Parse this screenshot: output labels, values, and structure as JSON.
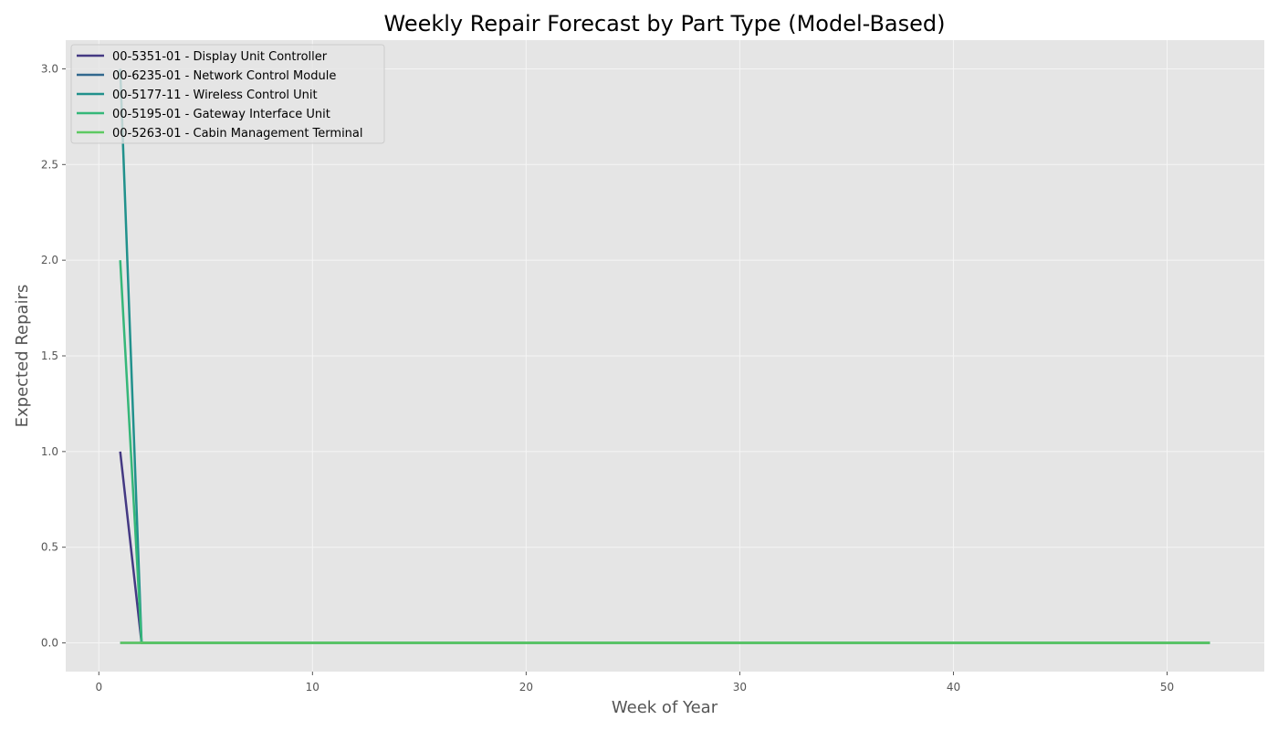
{
  "chart_data": {
    "type": "line",
    "title": "Weekly Repair Forecast by Part Type (Model-Based)",
    "xlabel": "Week of Year",
    "ylabel": "Expected Repairs",
    "xlim": [
      -1.55,
      54.55
    ],
    "ylim": [
      -0.15,
      3.15
    ],
    "x_ticks": [
      0,
      10,
      20,
      30,
      40,
      50
    ],
    "y_ticks": [
      0.0,
      0.5,
      1.0,
      1.5,
      2.0,
      2.5,
      3.0
    ],
    "x_tick_labels": [
      "0",
      "10",
      "20",
      "30",
      "40",
      "50"
    ],
    "y_tick_labels": [
      "0.0",
      "0.5",
      "1.0",
      "1.5",
      "2.0",
      "2.5",
      "3.0"
    ],
    "grid": true,
    "legend_position": "top-left",
    "series": [
      {
        "name": "00-5351-01 - Display Unit Controller",
        "color": "#443983",
        "points": [
          [
            1,
            1.0
          ],
          [
            2,
            0.0
          ],
          [
            52,
            0.0
          ]
        ]
      },
      {
        "name": "00-6235-01 - Network Control Module",
        "color": "#31688e",
        "points": [
          [
            1,
            0.0
          ],
          [
            2,
            0.0
          ],
          [
            52,
            0.0
          ]
        ]
      },
      {
        "name": "00-5177-11 - Wireless Control Unit",
        "color": "#21918c",
        "points": [
          [
            1,
            3.0
          ],
          [
            2,
            0.0
          ],
          [
            52,
            0.0
          ]
        ]
      },
      {
        "name": "00-5195-01 - Gateway Interface Unit",
        "color": "#35b779",
        "points": [
          [
            1,
            2.0
          ],
          [
            2,
            0.0
          ],
          [
            52,
            0.0
          ]
        ]
      },
      {
        "name": "00-5263-01 - Cabin Management Terminal",
        "color": "#5ec962",
        "points": [
          [
            1,
            0.0
          ],
          [
            2,
            0.0
          ],
          [
            52,
            0.0
          ]
        ]
      }
    ]
  }
}
